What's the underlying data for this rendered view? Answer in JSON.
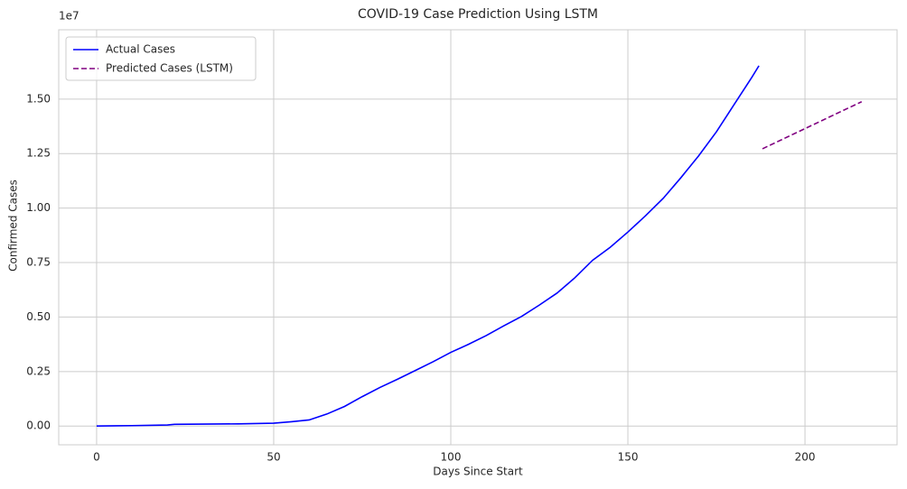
{
  "chart_data": {
    "type": "line",
    "title": "COVID-19 Case Prediction Using LSTM",
    "xlabel": "Days Since Start",
    "ylabel": "Confirmed Cases",
    "y_offset_label": "1e7",
    "series": [
      {
        "name": "Actual Cases",
        "color": "#0000ff",
        "dash": "solid",
        "x": [
          0,
          10,
          20,
          22,
          30,
          40,
          50,
          55,
          60,
          65,
          70,
          75,
          80,
          85,
          90,
          95,
          100,
          105,
          110,
          115,
          120,
          125,
          130,
          135,
          140,
          145,
          150,
          155,
          160,
          165,
          170,
          175,
          180,
          185,
          187
        ],
        "values": [
          0,
          0.002,
          0.005,
          0.008,
          0.009,
          0.01,
          0.013,
          0.02,
          0.028,
          0.055,
          0.09,
          0.135,
          0.177,
          0.215,
          0.255,
          0.295,
          0.338,
          0.375,
          0.415,
          0.46,
          0.503,
          0.555,
          0.61,
          0.68,
          0.76,
          0.82,
          0.89,
          0.965,
          1.045,
          1.14,
          1.24,
          1.35,
          1.475,
          1.6,
          1.653
        ]
      },
      {
        "name": "Predicted Cases (LSTM)",
        "color": "#800080",
        "dash": "dashed",
        "x": [
          188,
          216
        ],
        "values": [
          1.272,
          1.488
        ]
      }
    ],
    "xlim": [
      -10.7,
      226
    ],
    "xticks": [
      0,
      50,
      100,
      150,
      200
    ],
    "ylim": [
      -0.086,
      1.818
    ],
    "yticks": [
      {
        "value": 0,
        "label": "0.00"
      },
      {
        "value": 0.25,
        "label": "0.25"
      },
      {
        "value": 0.5,
        "label": "0.50"
      },
      {
        "value": 0.75,
        "label": "0.75"
      },
      {
        "value": 1,
        "label": "1.00"
      },
      {
        "value": 1.25,
        "label": "1.25"
      },
      {
        "value": 1.5,
        "label": "1.50"
      }
    ],
    "grid": true,
    "legend": "upper-left"
  }
}
